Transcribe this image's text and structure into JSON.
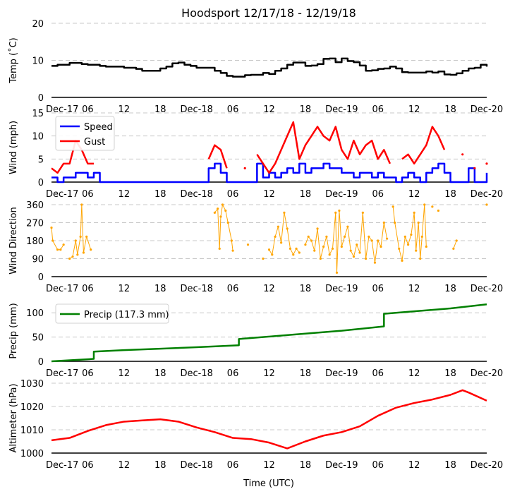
{
  "chart_data": [
    {
      "type": "line",
      "title": "Hoodsport 12/17/18 - 12/19/18",
      "xlabel": "Time (UTC)",
      "x_unit": "hours since Dec-17 00:00 UTC",
      "x_tick_labels": [
        "Dec-17",
        "06",
        "12",
        "18",
        "Dec-18",
        "06",
        "12",
        "18",
        "Dec-19",
        "06",
        "12",
        "18",
        "Dec-20"
      ],
      "xlim": [
        0,
        72
      ],
      "grid": "horizontal dashed",
      "panels": [
        {
          "id": "temp",
          "ylabel": "Temp ($^{\\circ}$C)",
          "ylabel_display": "Temp (˚C)",
          "ylim": [
            0,
            20
          ],
          "yticks": [
            0,
            10,
            20
          ],
          "series": [
            {
              "name": "Temp",
              "color": "#000000",
              "step": true,
              "values": [
                8.5,
                8.8,
                8.8,
                9.3,
                9.3,
                9.0,
                8.8,
                8.8,
                8.5,
                8.3,
                8.3,
                8.3,
                8.0,
                8.0,
                7.7,
                7.2,
                7.2,
                7.2,
                7.8,
                8.3,
                9.2,
                9.4,
                8.8,
                8.5,
                8.0,
                8.0,
                8.0,
                7.2,
                6.6,
                5.8,
                5.6,
                5.6,
                6.0,
                6.1,
                6.1,
                6.6,
                6.3,
                7.2,
                7.8,
                8.8,
                9.4,
                9.4,
                8.5,
                8.6,
                9.0,
                10.4,
                10.5,
                9.5,
                10.5,
                9.8,
                9.5,
                8.6,
                7.2,
                7.3,
                7.7,
                7.8,
                8.3,
                7.8,
                6.8,
                6.7,
                6.7,
                6.7,
                7.0,
                6.7,
                7.0,
                6.2,
                6.1,
                6.5,
                7.2,
                7.8,
                8.0,
                8.8,
                8.3
              ]
            }
          ]
        },
        {
          "id": "wind",
          "ylabel": "Wind (mph)",
          "ylim": [
            0,
            15
          ],
          "yticks": [
            0,
            5,
            10,
            15
          ],
          "legend": "upper-left",
          "series": [
            {
              "name": "Speed",
              "color": "#0000ff",
              "step": true,
              "values": [
                1,
                0,
                1,
                1,
                2,
                2,
                1,
                2,
                0,
                0,
                0,
                0,
                0,
                0,
                0,
                0,
                0,
                0,
                0,
                0,
                0,
                0,
                0,
                0,
                0,
                0,
                3,
                4,
                2,
                0,
                0,
                0,
                0,
                0,
                4,
                1,
                2,
                1,
                2,
                3,
                2,
                4,
                2,
                3,
                3,
                4,
                3,
                3,
                2,
                2,
                1,
                2,
                2,
                1,
                2,
                1,
                1,
                0,
                1,
                2,
                1,
                0,
                2,
                3,
                4,
                2,
                0,
                0,
                0,
                3,
                0,
                0,
                2
              ]
            },
            {
              "name": "Gust",
              "color": "#ff0000",
              "step": false,
              "values": [
                3,
                2,
                4,
                4,
                9,
                7,
                4,
                4,
                null,
                null,
                null,
                null,
                null,
                null,
                null,
                null,
                null,
                null,
                null,
                null,
                null,
                null,
                null,
                null,
                null,
                null,
                5,
                8,
                7,
                3,
                null,
                null,
                3,
                null,
                6,
                4,
                2,
                4,
                7,
                10,
                13,
                5,
                8,
                10,
                12,
                10,
                9,
                12,
                7,
                5,
                9,
                6,
                8,
                9,
                5,
                7,
                4,
                null,
                5,
                6,
                4,
                6,
                8,
                12,
                10,
                7,
                null,
                null,
                6,
                null,
                3,
                null,
                4
              ]
            }
          ]
        },
        {
          "id": "direction",
          "ylabel": "Wind Direction",
          "ylim": [
            0,
            360
          ],
          "yticks": [
            0,
            90,
            180,
            270,
            360
          ],
          "series": [
            {
              "name": "Direction",
              "color": "#ffa500",
              "type": "scatter",
              "points": [
                [
                  0,
                  245
                ],
                [
                  0.2,
                  180
                ],
                [
                  1,
                  135
                ],
                [
                  1.5,
                  135
                ],
                [
                  2,
                  160
                ],
                [
                  3,
                  90
                ],
                [
                  3.5,
                  100
                ],
                [
                  4,
                  180
                ],
                [
                  4.3,
                  110
                ],
                [
                  4.8,
                  200
                ],
                [
                  5,
                  360
                ],
                [
                  5.3,
                  120
                ],
                [
                  5.8,
                  200
                ],
                [
                  6.5,
                  135
                ],
                [
                  27,
                  320
                ],
                [
                  27.5,
                  340
                ],
                [
                  27.8,
                  140
                ],
                [
                  28,
                  300
                ],
                [
                  28.3,
                  360
                ],
                [
                  28.8,
                  330
                ],
                [
                  29.2,
                  270
                ],
                [
                  29.8,
                  180
                ],
                [
                  30,
                  130
                ],
                [
                  32.5,
                  160
                ],
                [
                  35,
                  90
                ],
                [
                  36,
                  135
                ],
                [
                  36.5,
                  110
                ],
                [
                  37,
                  200
                ],
                [
                  37.5,
                  250
                ],
                [
                  38,
                  170
                ],
                [
                  38.5,
                  320
                ],
                [
                  39,
                  240
                ],
                [
                  39.5,
                  140
                ],
                [
                  40,
                  110
                ],
                [
                  40.5,
                  140
                ],
                [
                  41,
                  120
                ],
                [
                  42,
                  160
                ],
                [
                  42.5,
                  200
                ],
                [
                  43,
                  180
                ],
                [
                  43.5,
                  130
                ],
                [
                  44,
                  240
                ],
                [
                  44.5,
                  90
                ],
                [
                  45,
                  150
                ],
                [
                  45.5,
                  200
                ],
                [
                  46,
                  110
                ],
                [
                  46.5,
                  140
                ],
                [
                  47,
                  320
                ],
                [
                  47.2,
                  20
                ],
                [
                  47.6,
                  330
                ],
                [
                  48,
                  150
                ],
                [
                  48.5,
                  200
                ],
                [
                  49,
                  250
                ],
                [
                  49.5,
                  130
                ],
                [
                  50,
                  100
                ],
                [
                  50.5,
                  160
                ],
                [
                  51,
                  120
                ],
                [
                  51.5,
                  320
                ],
                [
                  52,
                  90
                ],
                [
                  52.5,
                  200
                ],
                [
                  53,
                  180
                ],
                [
                  53.5,
                  70
                ],
                [
                  54,
                  180
                ],
                [
                  54.5,
                  150
                ],
                [
                  55,
                  270
                ],
                [
                  55.5,
                  190
                ],
                [
                  56.5,
                  350
                ],
                [
                  56.8,
                  270
                ],
                [
                  57.5,
                  140
                ],
                [
                  58,
                  80
                ],
                [
                  58.5,
                  200
                ],
                [
                  59,
                  160
                ],
                [
                  59.5,
                  210
                ],
                [
                  60,
                  320
                ],
                [
                  60.3,
                  130
                ],
                [
                  60.7,
                  270
                ],
                [
                  61,
                  90
                ],
                [
                  61.3,
                  200
                ],
                [
                  61.7,
                  360
                ],
                [
                  62,
                  150
                ],
                [
                  63,
                  350
                ],
                [
                  64,
                  330
                ],
                [
                  66.5,
                  140
                ],
                [
                  67,
                  180
                ],
                [
                  72,
                  360
                ]
              ]
            }
          ]
        },
        {
          "id": "precip",
          "ylabel": "Precip (mm)",
          "ylim": [
            0,
            125
          ],
          "yticks": [
            0,
            50,
            100
          ],
          "legend": "upper-left",
          "series": [
            {
              "name": "Precip (117.3 mm)",
              "color": "#008000",
              "type": "cumulative",
              "points": [
                [
                  0,
                  0
                ],
                [
                  7,
                  5
                ],
                [
                  7,
                  20
                ],
                [
                  12,
                  23
                ],
                [
                  18,
                  26
                ],
                [
                  24,
                  29
                ],
                [
                  31,
                  33
                ],
                [
                  31,
                  46
                ],
                [
                  40,
                  55
                ],
                [
                  48,
                  63
                ],
                [
                  55,
                  72
                ],
                [
                  55,
                  98
                ],
                [
                  60,
                  103
                ],
                [
                  66,
                  109
                ],
                [
                  72,
                  117.3
                ]
              ]
            }
          ]
        },
        {
          "id": "altimeter",
          "ylabel": "Altimeter (hPa)",
          "ylim": [
            1000,
            1030
          ],
          "yticks": [
            1000,
            1010,
            1020,
            1030
          ],
          "series": [
            {
              "name": "Altimeter",
              "color": "#ff0000",
              "points": [
                [
                  0,
                  1005.5
                ],
                [
                  3,
                  1006.5
                ],
                [
                  6,
                  1009.5
                ],
                [
                  9,
                  1012
                ],
                [
                  12,
                  1013.5
                ],
                [
                  15,
                  1014
                ],
                [
                  18,
                  1014.5
                ],
                [
                  21,
                  1013.5
                ],
                [
                  24,
                  1011
                ],
                [
                  27,
                  1009
                ],
                [
                  30,
                  1006.5
                ],
                [
                  33,
                  1006
                ],
                [
                  36,
                  1004.5
                ],
                [
                  39,
                  1002
                ],
                [
                  42,
                  1005
                ],
                [
                  45,
                  1007.5
                ],
                [
                  48,
                  1009
                ],
                [
                  51,
                  1011.5
                ],
                [
                  54,
                  1016
                ],
                [
                  57,
                  1019.5
                ],
                [
                  60,
                  1021.5
                ],
                [
                  63,
                  1023
                ],
                [
                  66,
                  1025
                ],
                [
                  68,
                  1027
                ],
                [
                  69,
                  1026
                ],
                [
                  72,
                  1022.5
                ]
              ]
            }
          ]
        }
      ]
    }
  ]
}
